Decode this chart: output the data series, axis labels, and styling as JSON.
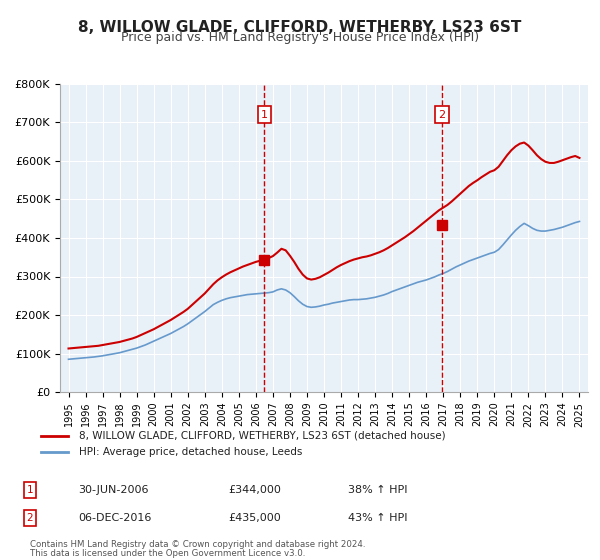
{
  "title": "8, WILLOW GLADE, CLIFFORD, WETHERBY, LS23 6ST",
  "subtitle": "Price paid vs. HM Land Registry's House Price Index (HPI)",
  "title_fontsize": 11,
  "subtitle_fontsize": 9,
  "background_color": "#ffffff",
  "plot_bg_color": "#e8f0f8",
  "grid_color": "#ffffff",
  "red_line_color": "#cc0000",
  "blue_line_color": "#6699cc",
  "marker_color": "#cc0000",
  "vline_color": "#cc0000",
  "annotation_box_color": "#cc0000",
  "xlim": [
    1994.5,
    2025.5
  ],
  "ylim": [
    0,
    800000
  ],
  "ytick_vals": [
    0,
    100000,
    200000,
    300000,
    400000,
    500000,
    600000,
    700000,
    800000
  ],
  "ytick_labels": [
    "£0",
    "£100K",
    "£200K",
    "£300K",
    "£400K",
    "£500K",
    "£600K",
    "£700K",
    "£800K"
  ],
  "xtick_vals": [
    1995,
    1996,
    1997,
    1998,
    1999,
    2000,
    2001,
    2002,
    2003,
    2004,
    2005,
    2006,
    2007,
    2008,
    2009,
    2010,
    2011,
    2012,
    2013,
    2014,
    2015,
    2016,
    2017,
    2018,
    2019,
    2020,
    2021,
    2022,
    2023,
    2024,
    2025
  ],
  "vline1_x": 2006.5,
  "vline2_x": 2016.92,
  "marker1_x": 2006.5,
  "marker1_y": 344000,
  "marker2_x": 2016.92,
  "marker2_y": 435000,
  "legend_label_red": "8, WILLOW GLADE, CLIFFORD, WETHERBY, LS23 6ST (detached house)",
  "legend_label_blue": "HPI: Average price, detached house, Leeds",
  "sale1_label": "1",
  "sale1_date": "30-JUN-2006",
  "sale1_price": "£344,000",
  "sale1_hpi": "38% ↑ HPI",
  "sale2_label": "2",
  "sale2_date": "06-DEC-2016",
  "sale2_price": "£435,000",
  "sale2_hpi": "43% ↑ HPI",
  "footer_line1": "Contains HM Land Registry data © Crown copyright and database right 2024.",
  "footer_line2": "This data is licensed under the Open Government Licence v3.0.",
  "hpi_x": [
    1995.0,
    1995.25,
    1995.5,
    1995.75,
    1996.0,
    1996.25,
    1996.5,
    1996.75,
    1997.0,
    1997.25,
    1997.5,
    1997.75,
    1998.0,
    1998.25,
    1998.5,
    1998.75,
    1999.0,
    1999.25,
    1999.5,
    1999.75,
    2000.0,
    2000.25,
    2000.5,
    2000.75,
    2001.0,
    2001.25,
    2001.5,
    2001.75,
    2002.0,
    2002.25,
    2002.5,
    2002.75,
    2003.0,
    2003.25,
    2003.5,
    2003.75,
    2004.0,
    2004.25,
    2004.5,
    2004.75,
    2005.0,
    2005.25,
    2005.5,
    2005.75,
    2006.0,
    2006.25,
    2006.5,
    2006.75,
    2007.0,
    2007.25,
    2007.5,
    2007.75,
    2008.0,
    2008.25,
    2008.5,
    2008.75,
    2009.0,
    2009.25,
    2009.5,
    2009.75,
    2010.0,
    2010.25,
    2010.5,
    2010.75,
    2011.0,
    2011.25,
    2011.5,
    2011.75,
    2012.0,
    2012.25,
    2012.5,
    2012.75,
    2013.0,
    2013.25,
    2013.5,
    2013.75,
    2014.0,
    2014.25,
    2014.5,
    2014.75,
    2015.0,
    2015.25,
    2015.5,
    2015.75,
    2016.0,
    2016.25,
    2016.5,
    2016.75,
    2017.0,
    2017.25,
    2017.5,
    2017.75,
    2018.0,
    2018.25,
    2018.5,
    2018.75,
    2019.0,
    2019.25,
    2019.5,
    2019.75,
    2020.0,
    2020.25,
    2020.5,
    2020.75,
    2021.0,
    2021.25,
    2021.5,
    2021.75,
    2022.0,
    2022.25,
    2022.5,
    2022.75,
    2023.0,
    2023.25,
    2023.5,
    2023.75,
    2024.0,
    2024.25,
    2024.5,
    2024.75,
    2025.0
  ],
  "hpi_y": [
    85000,
    86000,
    87000,
    88000,
    89000,
    90000,
    91000,
    92500,
    94000,
    96000,
    98000,
    100000,
    102000,
    105000,
    108000,
    111000,
    114000,
    118000,
    122000,
    127000,
    132000,
    137000,
    142000,
    147000,
    152000,
    158000,
    164000,
    170000,
    177000,
    185000,
    193000,
    201000,
    209000,
    218000,
    227000,
    233000,
    238000,
    242000,
    245000,
    247000,
    249000,
    251000,
    253000,
    254000,
    255000,
    256000,
    257000,
    258000,
    260000,
    265000,
    268000,
    265000,
    258000,
    248000,
    237000,
    228000,
    222000,
    220000,
    221000,
    223000,
    226000,
    228000,
    231000,
    233000,
    235000,
    237000,
    239000,
    240000,
    240000,
    241000,
    242000,
    244000,
    246000,
    249000,
    252000,
    256000,
    261000,
    265000,
    269000,
    273000,
    277000,
    281000,
    285000,
    288000,
    291000,
    295000,
    299000,
    304000,
    308000,
    313000,
    319000,
    325000,
    330000,
    335000,
    340000,
    344000,
    348000,
    352000,
    356000,
    360000,
    363000,
    370000,
    382000,
    395000,
    408000,
    420000,
    430000,
    438000,
    432000,
    425000,
    420000,
    418000,
    418000,
    420000,
    422000,
    425000,
    428000,
    432000,
    436000,
    440000,
    443000
  ],
  "red_x": [
    1995.0,
    1995.25,
    1995.5,
    1995.75,
    1996.0,
    1996.25,
    1996.5,
    1996.75,
    1997.0,
    1997.25,
    1997.5,
    1997.75,
    1998.0,
    1998.25,
    1998.5,
    1998.75,
    1999.0,
    1999.25,
    1999.5,
    1999.75,
    2000.0,
    2000.25,
    2000.5,
    2000.75,
    2001.0,
    2001.25,
    2001.5,
    2001.75,
    2002.0,
    2002.25,
    2002.5,
    2002.75,
    2003.0,
    2003.25,
    2003.5,
    2003.75,
    2004.0,
    2004.25,
    2004.5,
    2004.75,
    2005.0,
    2005.25,
    2005.5,
    2005.75,
    2006.0,
    2006.25,
    2006.5,
    2006.75,
    2007.0,
    2007.25,
    2007.5,
    2007.75,
    2008.0,
    2008.25,
    2008.5,
    2008.75,
    2009.0,
    2009.25,
    2009.5,
    2009.75,
    2010.0,
    2010.25,
    2010.5,
    2010.75,
    2011.0,
    2011.25,
    2011.5,
    2011.75,
    2012.0,
    2012.25,
    2012.5,
    2012.75,
    2013.0,
    2013.25,
    2013.5,
    2013.75,
    2014.0,
    2014.25,
    2014.5,
    2014.75,
    2015.0,
    2015.25,
    2015.5,
    2015.75,
    2016.0,
    2016.25,
    2016.5,
    2016.75,
    2017.0,
    2017.25,
    2017.5,
    2017.75,
    2018.0,
    2018.25,
    2018.5,
    2018.75,
    2019.0,
    2019.25,
    2019.5,
    2019.75,
    2020.0,
    2020.25,
    2020.5,
    2020.75,
    2021.0,
    2021.25,
    2021.5,
    2021.75,
    2022.0,
    2022.25,
    2022.5,
    2022.75,
    2023.0,
    2023.25,
    2023.5,
    2023.75,
    2024.0,
    2024.25,
    2024.5,
    2024.75,
    2025.0
  ],
  "red_y": [
    113000,
    114000,
    115000,
    116000,
    117000,
    118000,
    119000,
    120000,
    122000,
    124000,
    126000,
    128000,
    130000,
    133000,
    136000,
    139000,
    143000,
    148000,
    153000,
    158000,
    163000,
    169000,
    175000,
    181000,
    187000,
    194000,
    201000,
    208000,
    216000,
    226000,
    236000,
    246000,
    256000,
    268000,
    280000,
    290000,
    298000,
    305000,
    311000,
    316000,
    321000,
    326000,
    330000,
    334000,
    338000,
    341000,
    344000,
    348000,
    353000,
    362000,
    372000,
    368000,
    354000,
    338000,
    320000,
    305000,
    295000,
    292000,
    294000,
    298000,
    304000,
    310000,
    317000,
    324000,
    330000,
    335000,
    340000,
    344000,
    347000,
    350000,
    352000,
    355000,
    359000,
    363000,
    368000,
    374000,
    381000,
    388000,
    395000,
    402000,
    410000,
    418000,
    427000,
    436000,
    445000,
    454000,
    463000,
    472000,
    479000,
    486000,
    495000,
    505000,
    515000,
    525000,
    535000,
    543000,
    550000,
    558000,
    565000,
    572000,
    576000,
    585000,
    600000,
    615000,
    628000,
    638000,
    645000,
    648000,
    640000,
    628000,
    615000,
    605000,
    598000,
    595000,
    595000,
    598000,
    602000,
    606000,
    610000,
    613000,
    608000
  ]
}
